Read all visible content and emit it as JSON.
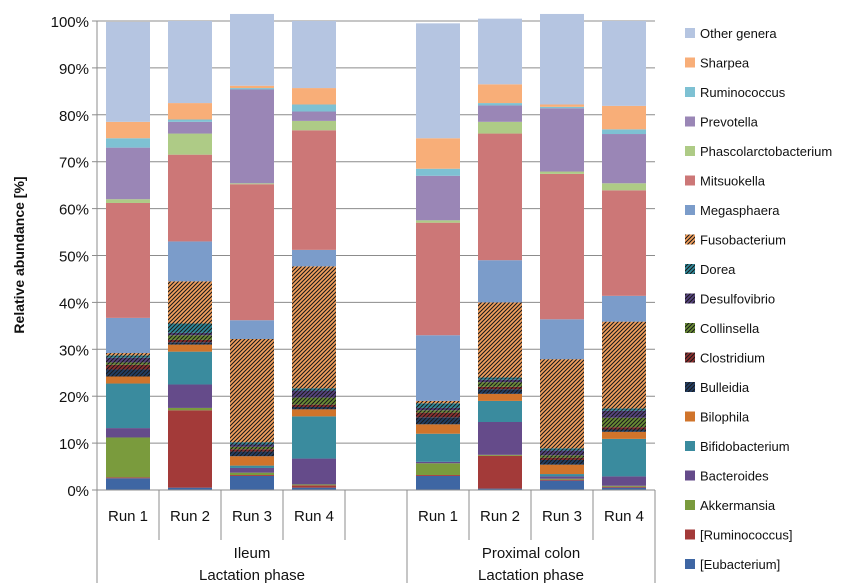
{
  "chart_data": {
    "type": "bar",
    "stacked": true,
    "ylabel": "Relative abundance [%]",
    "ylim": [
      0,
      100
    ],
    "yticks": [
      "0%",
      "10%",
      "20%",
      "30%",
      "40%",
      "50%",
      "60%",
      "70%",
      "80%",
      "90%",
      "100%"
    ],
    "grid": true,
    "legend_position": "right",
    "groups": [
      {
        "line1": "Ileum",
        "line2": "Lactation phase",
        "categories": [
          "Run 1",
          "Run 2",
          "Run 3",
          "Run 4"
        ]
      },
      {
        "line1": "Proximal colon",
        "line2": "Lactation phase",
        "categories": [
          "Run 1",
          "Run 2",
          "Run 3",
          "Run 4"
        ]
      }
    ],
    "series": [
      {
        "name": "[Eubacterium]",
        "color": "#3e66a3",
        "values": [
          2.5,
          0.5,
          3,
          0.5,
          3,
          0.3,
          2,
          0.5
        ]
      },
      {
        "name": "[Ruminococcus]",
        "color": "#a33a39",
        "values": [
          0.2,
          16.5,
          0.2,
          0.5,
          0.2,
          7,
          0.2,
          0.2
        ]
      },
      {
        "name": "Akkermansia",
        "color": "#7a9b3d",
        "values": [
          8.5,
          0.5,
          0.5,
          0.2,
          2.5,
          0.2,
          0.2,
          0.2
        ]
      },
      {
        "name": "Bacteroides",
        "color": "#654b8a",
        "values": [
          2,
          5,
          1,
          5.5,
          0.3,
          7,
          0.5,
          2
        ]
      },
      {
        "name": "Bifidobacterium",
        "color": "#3a8b9e",
        "values": [
          9.5,
          7,
          0.5,
          9,
          6,
          4.5,
          0.5,
          8
        ]
      },
      {
        "name": "Bilophila",
        "color": "#d0742b",
        "values": [
          1.5,
          1.5,
          2,
          1.5,
          2,
          1.5,
          2,
          1.5
        ]
      },
      {
        "name": "Bulleidia",
        "color": "#223f66",
        "values": [
          1.5,
          0.5,
          1,
          0.5,
          1.5,
          1,
          1,
          0.5
        ]
      },
      {
        "name": "Clostridium",
        "color": "#8e2f2f",
        "values": [
          1,
          0.5,
          0.5,
          0.5,
          1,
          0.5,
          0.5,
          0.5
        ]
      },
      {
        "name": "Collinsella",
        "color": "#6a8e35",
        "values": [
          0.5,
          1,
          0.5,
          1.5,
          0.5,
          1,
          0.5,
          2
        ]
      },
      {
        "name": "Desulfovibrio",
        "color": "#574381",
        "values": [
          1,
          0.5,
          0.5,
          1.5,
          0.5,
          0.5,
          1,
          1.5
        ]
      },
      {
        "name": "Dorea",
        "color": "#2f8a9b",
        "values": [
          0.5,
          2,
          0.5,
          0.5,
          1,
          0.5,
          0.5,
          0.5
        ]
      },
      {
        "name": "Fusobacterium",
        "color": "#f4a15e",
        "values": [
          0.5,
          9,
          22,
          26,
          0.5,
          16,
          19,
          18.5
        ]
      },
      {
        "name": "Megasphaera",
        "color": "#7b9cca",
        "values": [
          7.5,
          8.5,
          4,
          3.5,
          14,
          9,
          8.5,
          5.5
        ]
      },
      {
        "name": "Mitsuokella",
        "color": "#cc7777",
        "values": [
          24.5,
          18.5,
          29,
          25.5,
          24,
          27,
          31,
          22.5
        ]
      },
      {
        "name": "Phascolarctobacterium",
        "color": "#aecb86",
        "values": [
          0.8,
          4.5,
          0.2,
          2,
          0.5,
          2.5,
          0.5,
          1.5
        ]
      },
      {
        "name": "Prevotella",
        "color": "#9a86b6",
        "values": [
          11,
          2.5,
          20,
          2,
          9.5,
          3.5,
          13.5,
          10.5
        ]
      },
      {
        "name": "Ruminococcus",
        "color": "#7ec1d3",
        "values": [
          2,
          0.5,
          0.3,
          1.5,
          1.5,
          0.5,
          0.3,
          1
        ]
      },
      {
        "name": "Sharpea",
        "color": "#f8ae78",
        "values": [
          3.5,
          3.5,
          0.5,
          3.5,
          6.5,
          4,
          0.5,
          5
        ]
      },
      {
        "name": "Other genera",
        "color": "#b5c5e1",
        "values": [
          21.3,
          17.5,
          15.3,
          14.3,
          24.5,
          14,
          19.3,
          18.1
        ]
      }
    ],
    "hatched_series": [
      "Bulleidia",
      "Clostridium",
      "Collinsella",
      "Desulfovibrio",
      "Dorea",
      "Fusobacterium"
    ],
    "legend_order": [
      "Other genera",
      "Sharpea",
      "Ruminococcus",
      "Prevotella",
      "Phascolarctobacterium",
      "Mitsuokella",
      "Megasphaera",
      "Fusobacterium",
      "Dorea",
      "Desulfovibrio",
      "Collinsella",
      "Clostridium",
      "Bulleidia",
      "Bilophila",
      "Bifidobacterium",
      "Bacteroides",
      "Akkermansia",
      "[Ruminococcus]",
      "[Eubacterium]"
    ]
  }
}
